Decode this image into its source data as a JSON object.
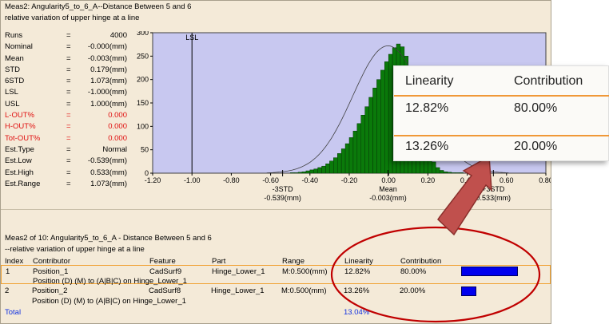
{
  "header": {
    "line1": "Meas2: Angularity5_to_6_A--Distance Between 5 and 6",
    "line2": "relative variation of upper hinge at a line"
  },
  "stats": [
    {
      "key": "Runs",
      "value": "4000",
      "red": false
    },
    {
      "key": "Nominal",
      "value": "-0.000(mm)",
      "red": false
    },
    {
      "key": "Mean",
      "value": "-0.003(mm)",
      "red": false
    },
    {
      "key": "STD",
      "value": "0.179(mm)",
      "red": false
    },
    {
      "key": "6STD",
      "value": "1.073(mm)",
      "red": false
    },
    {
      "key": "LSL",
      "value": "-1.000(mm)",
      "red": false
    },
    {
      "key": "USL",
      "value": "1.000(mm)",
      "red": false
    },
    {
      "key": "L-OUT%",
      "value": "0.000",
      "red": true
    },
    {
      "key": "H-OUT%",
      "value": "0.000",
      "red": true
    },
    {
      "key": "Tot-OUT%",
      "value": "0.000",
      "red": true
    },
    {
      "key": "Est.Type",
      "value": "Normal",
      "red": false
    },
    {
      "key": "Est.Low",
      "value": "-0.539(mm)",
      "red": false
    },
    {
      "key": "Est.High",
      "value": "0.533(mm)",
      "red": false
    },
    {
      "key": "Est.Range",
      "value": "1.073(mm)",
      "red": false
    }
  ],
  "equals_sign": "=",
  "chart_data": {
    "type": "bar",
    "xlim": [
      -1.2,
      0.8
    ],
    "ylim": [
      0,
      300
    ],
    "x_ticks": [
      -1.2,
      -1.0,
      -0.8,
      -0.6,
      -0.4,
      -0.2,
      0.0,
      0.2,
      0.4,
      0.6,
      0.8
    ],
    "x_tick_labels": [
      "-1.20",
      "-1.00",
      "-0.80",
      "-0.60",
      "-0.40",
      "-0.20",
      "0.00",
      "0.20",
      "0.40",
      "0.60",
      "0.80"
    ],
    "y_ticks": [
      0,
      50,
      100,
      150,
      200,
      250,
      300
    ],
    "y_tick_labels": [
      "0",
      "50",
      "100",
      "150",
      "200",
      "250",
      "300"
    ],
    "bin_start": -0.5,
    "bin_width": 0.02,
    "values": [
      1,
      1,
      2,
      3,
      5,
      7,
      9,
      12,
      15,
      20,
      26,
      33,
      42,
      52,
      63,
      76,
      90,
      106,
      124,
      142,
      162,
      182,
      200,
      220,
      238,
      254,
      268,
      276,
      270,
      250,
      222,
      188,
      150,
      112,
      76,
      45,
      24,
      12,
      6,
      3,
      2,
      1,
      1,
      1
    ],
    "normal_curve": {
      "mean": -0.003,
      "std": 0.179,
      "peak": 272
    },
    "lsl": -1.0,
    "lsl_label": "LSL",
    "markers": [
      {
        "x": -0.539,
        "line1": "-3STD",
        "line2": "-0.539(mm)"
      },
      {
        "x": -0.003,
        "line1": "Mean",
        "line2": "-0.003(mm)"
      },
      {
        "x": 0.533,
        "line1": "+3STD",
        "line2": "0.533(mm)"
      }
    ],
    "bar_color": "#0a7a0a",
    "bar_edge": "#063806",
    "plot_bg": "#c8c8f0"
  },
  "table": {
    "title1": "Meas2 of 10: Angularity5_to_6_A - Distance Between 5 and 6",
    "title2": "--relative variation of upper hinge at a line",
    "headers": {
      "index": "Index",
      "contributor": "Contributor",
      "feature": "Feature",
      "part": "Part",
      "range": "Range",
      "linearity": "Linearity",
      "contribution": "Contribution"
    },
    "rows": [
      {
        "index": "1",
        "contributor": "Position_1",
        "feature": "CadSurf9",
        "part": "Hinge_Lower_1",
        "range": "M:0.500(mm)",
        "linearity": "12.82%",
        "contribution": "80.00%",
        "contribution_value": 80.0,
        "sub": "Position (D) (M) to (A|B|C) on Hinge_Lower_1"
      },
      {
        "index": "2",
        "contributor": "Position_2",
        "feature": "CadSurf8",
        "part": "Hinge_Lower_1",
        "range": "M:0.500(mm)",
        "linearity": "13.26%",
        "contribution": "20.00%",
        "contribution_value": 20.0,
        "sub": "Position (D) (M) to (A|B|C) on Hinge_Lower_1"
      }
    ],
    "total_label": "Total",
    "total_linearity": "13.04%"
  },
  "zoom": {
    "header_linearity": "Linearity",
    "header_contribution": "Contribution",
    "row1_linearity": "12.82%",
    "row1_contribution": "80.00%",
    "row2_linearity": "13.26%",
    "row2_contribution": "20.00%"
  },
  "colors": {
    "panel_bg": "#f4ead8",
    "selection": "#f0a030",
    "contribution_bar": "#0000ee",
    "total_text": "#1030e0",
    "annotation_red": "#c00000",
    "arrow_fill": "#c0504d"
  }
}
